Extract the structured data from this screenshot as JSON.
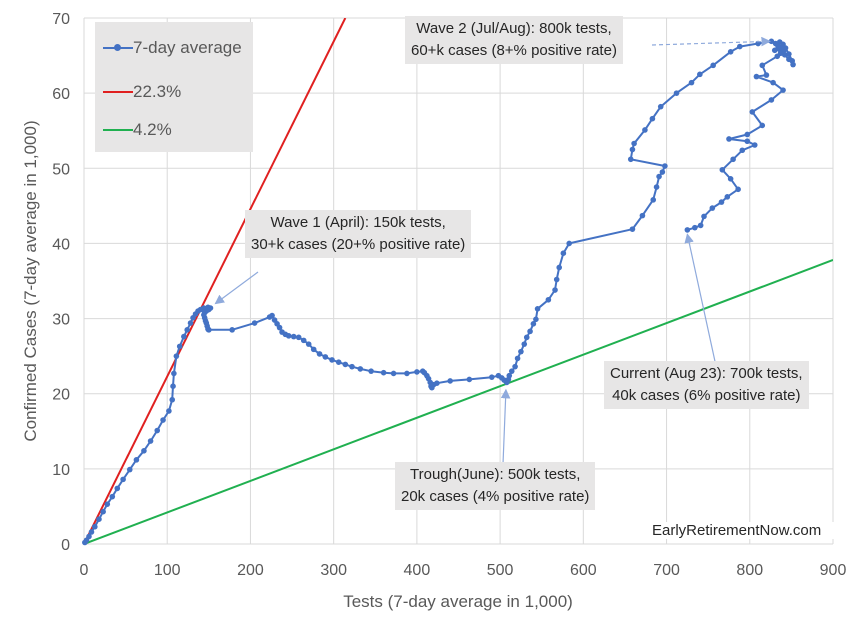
{
  "chart_data": {
    "type": "scatter",
    "title": "",
    "xlabel": "Tests (7-day average in 1,000)",
    "ylabel": "Confirmed Cases (7-day average in 1,000)",
    "xlim": [
      0,
      900
    ],
    "ylim": [
      0,
      70
    ],
    "x_ticks": [
      "0",
      "100",
      "200",
      "300",
      "400",
      "500",
      "600",
      "700",
      "800",
      "900"
    ],
    "y_ticks": [
      "0",
      "10",
      "20",
      "30",
      "40",
      "50",
      "60",
      "70"
    ],
    "grid": true,
    "legend_position": "top-left",
    "legend": [
      "7-day average",
      "22.3%",
      "4.2%"
    ],
    "colors": {
      "series": "#4472c4",
      "high_rate": "#e02020",
      "low_rate": "#20b050"
    },
    "series": [
      {
        "name": "7-day average",
        "mode": "line+markers",
        "points": [
          [
            1,
            0.2
          ],
          [
            3,
            0.5
          ],
          [
            6,
            1
          ],
          [
            9,
            1.6
          ],
          [
            13,
            2.3
          ],
          [
            18,
            3.3
          ],
          [
            23,
            4.3
          ],
          [
            28,
            5.3
          ],
          [
            34,
            6.3
          ],
          [
            40,
            7.4
          ],
          [
            47,
            8.6
          ],
          [
            55,
            9.9
          ],
          [
            63,
            11.2
          ],
          [
            72,
            12.4
          ],
          [
            80,
            13.7
          ],
          [
            88,
            15.1
          ],
          [
            95,
            16.5
          ],
          [
            102,
            17.7
          ],
          [
            106,
            19.2
          ],
          [
            107,
            21
          ],
          [
            108,
            22.7
          ],
          [
            111,
            25
          ],
          [
            115,
            26.3
          ],
          [
            120,
            27.6
          ],
          [
            124,
            28.5
          ],
          [
            128,
            29.4
          ],
          [
            131,
            30.1
          ],
          [
            134,
            30.6
          ],
          [
            137,
            31
          ],
          [
            140,
            31.2
          ],
          [
            144,
            31.4
          ],
          [
            149,
            31.5
          ],
          [
            152,
            31.4
          ],
          [
            150,
            31.2
          ],
          [
            147,
            31
          ],
          [
            145,
            30.8
          ],
          [
            144,
            30.5
          ],
          [
            145,
            30.1
          ],
          [
            146,
            29.7
          ],
          [
            147,
            29.4
          ],
          [
            148,
            29
          ],
          [
            149,
            28.6
          ],
          [
            150,
            28.5
          ],
          [
            178,
            28.5
          ],
          [
            205,
            29.4
          ],
          [
            223,
            30.2
          ],
          [
            226,
            30.4
          ],
          [
            229,
            29.8
          ],
          [
            232,
            29.3
          ],
          [
            235,
            28.8
          ],
          [
            238,
            28.2
          ],
          [
            242,
            27.9
          ],
          [
            246,
            27.7
          ],
          [
            252,
            27.6
          ],
          [
            258,
            27.5
          ],
          [
            264,
            27.1
          ],
          [
            270,
            26.6
          ],
          [
            276,
            25.9
          ],
          [
            283,
            25.3
          ],
          [
            290,
            24.9
          ],
          [
            298,
            24.5
          ],
          [
            306,
            24.2
          ],
          [
            314,
            23.9
          ],
          [
            322,
            23.6
          ],
          [
            332,
            23.3
          ],
          [
            345,
            23
          ],
          [
            360,
            22.8
          ],
          [
            372,
            22.7
          ],
          [
            388,
            22.7
          ],
          [
            400,
            22.9
          ],
          [
            407,
            23
          ],
          [
            409,
            22.8
          ],
          [
            412,
            22.4
          ],
          [
            414,
            22
          ],
          [
            416,
            21.5
          ],
          [
            417,
            21
          ],
          [
            418,
            20.8
          ],
          [
            420,
            21.2
          ],
          [
            424,
            21.4
          ],
          [
            440,
            21.7
          ],
          [
            463,
            21.9
          ],
          [
            490,
            22.2
          ],
          [
            498,
            22.4
          ],
          [
            502,
            22.1
          ],
          [
            505,
            21.8
          ],
          [
            508,
            21.5
          ],
          [
            510,
            21.9
          ],
          [
            511,
            22.4
          ],
          [
            514,
            23
          ],
          [
            518,
            23.6
          ],
          [
            521,
            24.7
          ],
          [
            525,
            25.6
          ],
          [
            529,
            26.6
          ],
          [
            532,
            27.5
          ],
          [
            536,
            28.3
          ],
          [
            540,
            29.3
          ],
          [
            543,
            29.9
          ],
          [
            545,
            31.3
          ],
          [
            558,
            32.5
          ],
          [
            566,
            33.8
          ],
          [
            568,
            35.2
          ],
          [
            571,
            36.8
          ],
          [
            576,
            38.7
          ],
          [
            583,
            40
          ],
          [
            659,
            41.9
          ],
          [
            671,
            43.7
          ],
          [
            684,
            45.8
          ],
          [
            688,
            47.5
          ],
          [
            691,
            48.9
          ],
          [
            695,
            49.5
          ],
          [
            698,
            50.3
          ],
          [
            657,
            51.2
          ],
          [
            659,
            52.5
          ],
          [
            661,
            53.3
          ],
          [
            674,
            55.1
          ],
          [
            683,
            56.6
          ],
          [
            693,
            58.2
          ],
          [
            712,
            60
          ],
          [
            730,
            61.4
          ],
          [
            740,
            62.5
          ],
          [
            756,
            63.7
          ],
          [
            777,
            65.5
          ],
          [
            788,
            66.2
          ],
          [
            810,
            66.6
          ],
          [
            826,
            66.9
          ],
          [
            831,
            66.6
          ],
          [
            836,
            66.8
          ],
          [
            840,
            66.5
          ],
          [
            843,
            66
          ],
          [
            847,
            65.2
          ],
          [
            851,
            64.3
          ],
          [
            852,
            63.8
          ],
          [
            847,
            64.5
          ],
          [
            842,
            65.1
          ],
          [
            838,
            65.5
          ],
          [
            836,
            65.8
          ],
          [
            830,
            65.7
          ],
          [
            834,
            66.2
          ],
          [
            838,
            66.1
          ],
          [
            841,
            65.7
          ],
          [
            837,
            65.3
          ],
          [
            833,
            64.9
          ],
          [
            815,
            63.7
          ],
          [
            820,
            62.4
          ],
          [
            808,
            62.2
          ],
          [
            828,
            61.4
          ],
          [
            840,
            60.4
          ],
          [
            826,
            59.1
          ],
          [
            803,
            57.5
          ],
          [
            815,
            55.7
          ],
          [
            797,
            54.5
          ],
          [
            775,
            53.9
          ],
          [
            797,
            53.6
          ],
          [
            806,
            53.1
          ],
          [
            791,
            52.4
          ],
          [
            780,
            51.2
          ],
          [
            767,
            49.8
          ],
          [
            777,
            48.6
          ],
          [
            786,
            47.2
          ],
          [
            773,
            46.2
          ],
          [
            766,
            45.5
          ],
          [
            755,
            44.7
          ],
          [
            745,
            43.6
          ],
          [
            741,
            42.4
          ],
          [
            734,
            42.1
          ],
          [
            725,
            41.8
          ]
        ]
      },
      {
        "name": "22.3%",
        "mode": "line",
        "points": [
          [
            0,
            0
          ],
          [
            314,
            70
          ]
        ]
      },
      {
        "name": "4.2%",
        "mode": "line",
        "points": [
          [
            0,
            0
          ],
          [
            900,
            37.8
          ]
        ]
      }
    ],
    "annotations": [
      {
        "line1": "Wave 2 (Jul/Aug): 800k tests,",
        "line2": "60+k cases (8+% positive rate)",
        "target": [
          824,
          66.9
        ]
      },
      {
        "line1": "Wave 1 (April): 150k tests,",
        "line2": "30+k cases (20+% positive rate)",
        "target": [
          158,
          32
        ]
      },
      {
        "line1": "Current (Aug 23): 700k tests,",
        "line2": "40k cases (6% positive rate)",
        "target": [
          725,
          41.2
        ]
      },
      {
        "line1": "Trough(June): 500k tests,",
        "line2": "20k cases (4% positive rate)",
        "target": [
          507,
          20.5
        ]
      }
    ],
    "credit": "EarlyRetirementNow.com"
  }
}
